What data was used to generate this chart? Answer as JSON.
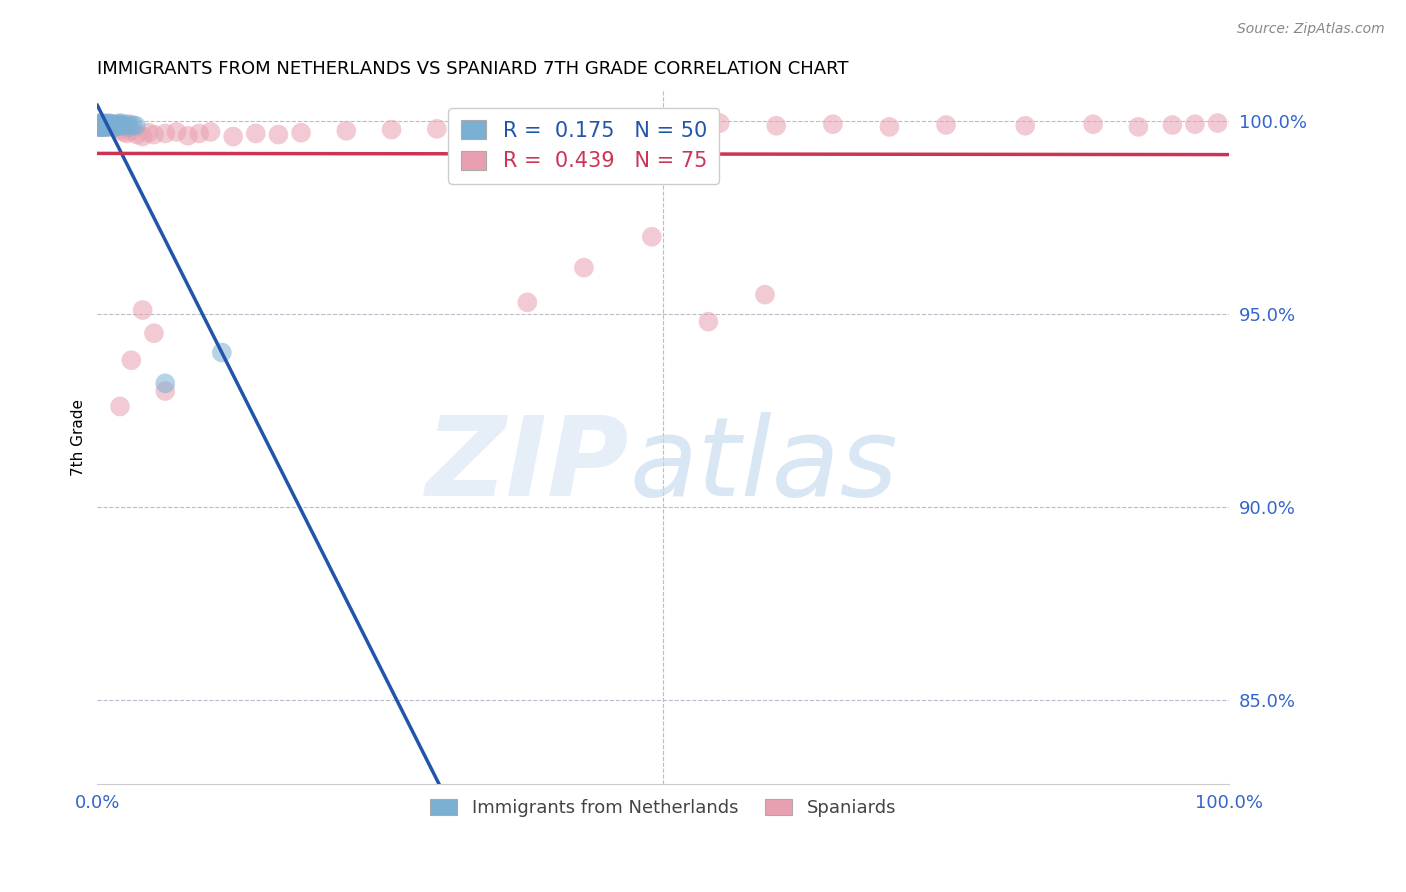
{
  "title": "IMMIGRANTS FROM NETHERLANDS VS SPANIARD 7TH GRADE CORRELATION CHART",
  "source_text": "Source: ZipAtlas.com",
  "ylabel": "7th Grade",
  "xlim": [
    0.0,
    1.0
  ],
  "ylim": [
    0.828,
    1.008
  ],
  "y_tick_right": [
    0.85,
    0.9,
    0.95,
    1.0
  ],
  "y_tick_right_labels": [
    "85.0%",
    "90.0%",
    "95.0%",
    "100.0%"
  ],
  "blue_color": "#7bafd4",
  "pink_color": "#e8a0b0",
  "blue_line_color": "#2255aa",
  "pink_line_color": "#cc3355",
  "R_blue": 0.175,
  "N_blue": 50,
  "R_pink": 0.439,
  "N_pink": 75,
  "legend_label_blue": "Immigrants from Netherlands",
  "legend_label_pink": "Spaniards",
  "blue_x": [
    0.001,
    0.002,
    0.003,
    0.004,
    0.005,
    0.006,
    0.007,
    0.008,
    0.009,
    0.01,
    0.012,
    0.014,
    0.016,
    0.018,
    0.02,
    0.022,
    0.025,
    0.028,
    0.031,
    0.034,
    0.001,
    0.002,
    0.003,
    0.003,
    0.004,
    0.005,
    0.005,
    0.006,
    0.007,
    0.008,
    0.009,
    0.01,
    0.011,
    0.013,
    0.015,
    0.017,
    0.019,
    0.021,
    0.002,
    0.003,
    0.002,
    0.004,
    0.006,
    0.008,
    0.01,
    0.012,
    0.003,
    0.005,
    0.06,
    0.11
  ],
  "blue_y": [
    0.9995,
    0.999,
    0.9985,
    0.999,
    0.9995,
    0.9988,
    0.9992,
    0.9985,
    0.999,
    0.9995,
    0.9988,
    0.9992,
    0.9985,
    0.999,
    0.9995,
    0.9988,
    0.9992,
    0.9985,
    0.999,
    0.9988,
    0.9992,
    0.9985,
    0.9992,
    0.999,
    0.9988,
    0.9985,
    0.9992,
    0.999,
    0.9988,
    0.9992,
    0.9985,
    0.999,
    0.9988,
    0.9992,
    0.9985,
    0.999,
    0.9988,
    0.9992,
    0.9985,
    0.999,
    0.9988,
    0.9992,
    0.9985,
    0.999,
    0.9988,
    0.9992,
    0.9985,
    0.999,
    0.932,
    0.94
  ],
  "pink_x": [
    0.001,
    0.002,
    0.003,
    0.004,
    0.005,
    0.006,
    0.007,
    0.008,
    0.009,
    0.01,
    0.012,
    0.014,
    0.016,
    0.018,
    0.02,
    0.022,
    0.025,
    0.028,
    0.002,
    0.003,
    0.004,
    0.005,
    0.006,
    0.007,
    0.008,
    0.01,
    0.012,
    0.014,
    0.016,
    0.018,
    0.02,
    0.023,
    0.026,
    0.03,
    0.035,
    0.04,
    0.045,
    0.05,
    0.06,
    0.07,
    0.08,
    0.09,
    0.1,
    0.12,
    0.14,
    0.16,
    0.18,
    0.22,
    0.26,
    0.3,
    0.35,
    0.4,
    0.45,
    0.5,
    0.55,
    0.6,
    0.65,
    0.7,
    0.75,
    0.82,
    0.88,
    0.92,
    0.95,
    0.97,
    0.99,
    0.38,
    0.43,
    0.49,
    0.54,
    0.59,
    0.02,
    0.03,
    0.04,
    0.05,
    0.06
  ],
  "pink_y": [
    0.999,
    0.9985,
    0.9992,
    0.9988,
    0.9985,
    0.9992,
    0.999,
    0.9988,
    0.9985,
    0.9992,
    0.9988,
    0.999,
    0.9985,
    0.9992,
    0.9988,
    0.999,
    0.9985,
    0.9992,
    0.9985,
    0.999,
    0.9988,
    0.9992,
    0.9985,
    0.999,
    0.9988,
    0.9992,
    0.9985,
    0.999,
    0.9988,
    0.9985,
    0.9978,
    0.9972,
    0.9968,
    0.9975,
    0.9965,
    0.996,
    0.997,
    0.9965,
    0.9968,
    0.9972,
    0.9962,
    0.9968,
    0.9972,
    0.996,
    0.9968,
    0.9965,
    0.997,
    0.9975,
    0.9978,
    0.998,
    0.9988,
    0.9992,
    0.9985,
    0.999,
    0.9995,
    0.9988,
    0.9992,
    0.9985,
    0.999,
    0.9988,
    0.9992,
    0.9985,
    0.999,
    0.9992,
    0.9995,
    0.953,
    0.962,
    0.97,
    0.948,
    0.955,
    0.926,
    0.938,
    0.951,
    0.945,
    0.93
  ]
}
